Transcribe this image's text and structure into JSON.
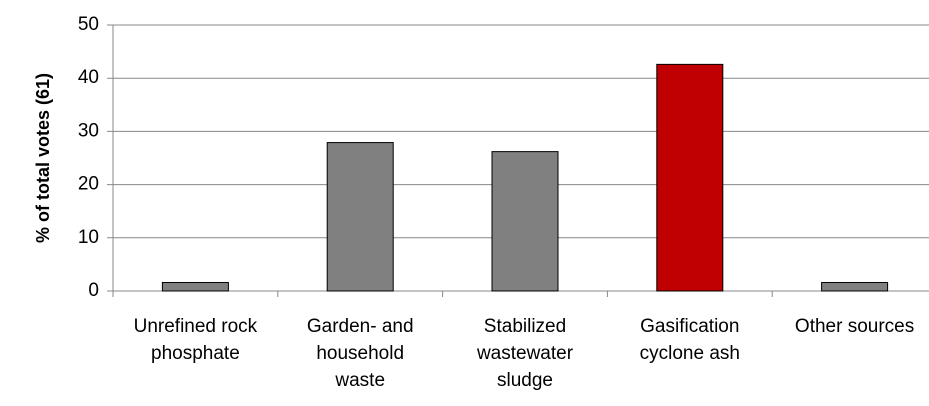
{
  "chart_data": {
    "type": "bar",
    "ylabel": "% of total votes (61)",
    "categories": [
      [
        "Unrefined rock",
        "phosphate"
      ],
      [
        "Garden- and",
        "household",
        "waste"
      ],
      [
        "Stabilized",
        "wastewater",
        "sludge"
      ],
      [
        "Gasification",
        "cyclone ash"
      ],
      [
        "Other sources"
      ]
    ],
    "values": [
      1.6,
      27.9,
      26.2,
      42.6,
      1.6
    ],
    "colors": [
      "#808080",
      "#808080",
      "#808080",
      "#c00000",
      "#808080"
    ],
    "ylim": [
      0,
      50
    ],
    "yticks": [
      0,
      10,
      20,
      30,
      40,
      50
    ],
    "grid": true
  }
}
